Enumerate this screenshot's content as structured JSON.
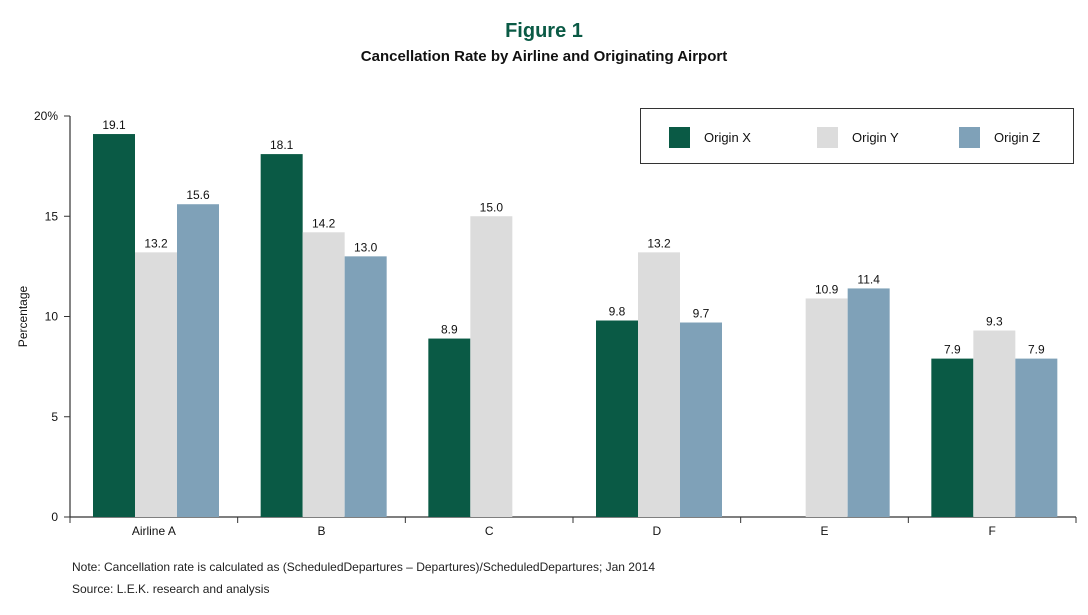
{
  "figure_label": "Figure 1",
  "note": "Note: Cancellation rate is calculated as (ScheduledDepartures – Departures)/ScheduledDepartures; Jan 2014",
  "source": "Source: L.E.K. research and analysis",
  "colors": {
    "accent": "#0a5a45",
    "Origin X": "#0a5a45",
    "Origin Y": "#dcdcdc",
    "Origin Z": "#7fa1b8"
  },
  "chart_data": {
    "type": "bar",
    "title": "Cancellation Rate by Airline and Originating Airport",
    "xlabel": "",
    "ylabel": "Percentage",
    "ylim": [
      0,
      20
    ],
    "yticks": [
      "0",
      "5",
      "10",
      "15",
      "20%"
    ],
    "categories": [
      "Airline A",
      "B",
      "C",
      "D",
      "E",
      "F"
    ],
    "series": [
      {
        "name": "Origin X",
        "values": [
          19.1,
          18.1,
          8.9,
          9.8,
          null,
          7.9
        ]
      },
      {
        "name": "Origin Y",
        "values": [
          13.2,
          14.2,
          15.0,
          13.2,
          10.9,
          9.3
        ]
      },
      {
        "name": "Origin Z",
        "values": [
          15.6,
          13.0,
          null,
          9.7,
          11.4,
          7.9
        ]
      }
    ],
    "legend": "top-right",
    "grid": false
  }
}
